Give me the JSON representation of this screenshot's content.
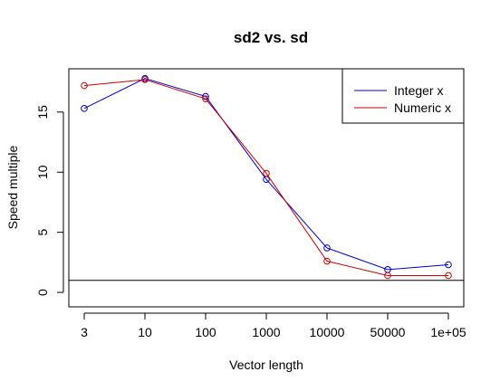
{
  "chart_data": {
    "type": "line",
    "title": "sd2 vs. sd",
    "xlabel": "Vector length",
    "ylabel": "Speed multiple",
    "categories": [
      "3",
      "10",
      "100",
      "1000",
      "10000",
      "50000",
      "1e+05"
    ],
    "ylim": [
      -1.2,
      18.6
    ],
    "yticks": [
      0,
      5,
      10,
      15
    ],
    "series": [
      {
        "name": "Integer x",
        "color": "#0000cc",
        "values": [
          15.3,
          17.8,
          16.3,
          9.4,
          3.7,
          1.9,
          2.3
        ]
      },
      {
        "name": "Numeric x",
        "color": "#cc0000",
        "values": [
          17.2,
          17.7,
          16.1,
          9.9,
          2.6,
          1.4,
          1.4
        ]
      }
    ],
    "reference_line": {
      "y": 1
    },
    "legend": "top-right",
    "grid": false
  }
}
